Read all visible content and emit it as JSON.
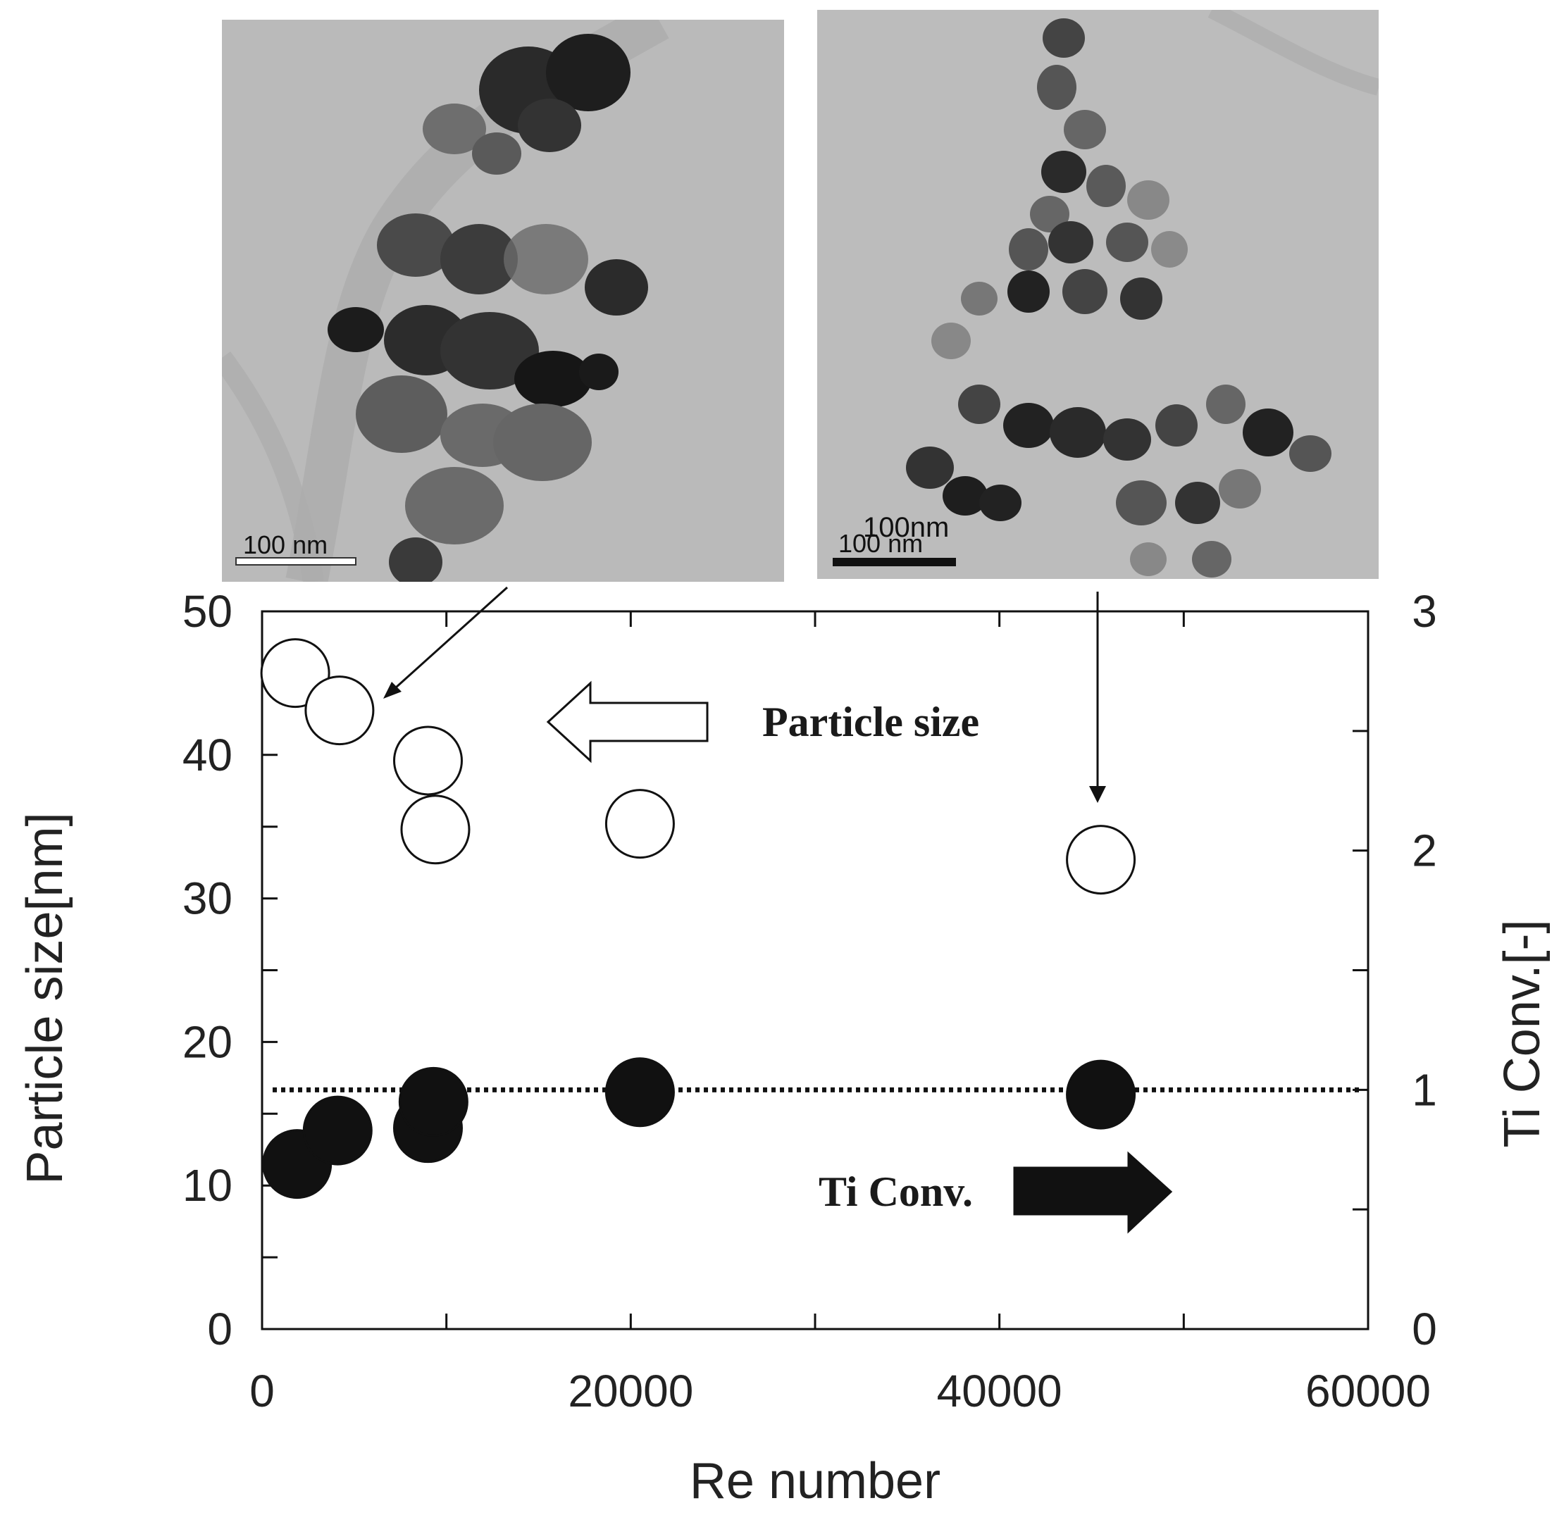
{
  "chart_data": {
    "type": "scatter",
    "xlabel": "Re number",
    "ylabel": "Particle  size[nm]",
    "y2label": "Ti Conv.[-]",
    "xlim": [
      0,
      60000
    ],
    "ylim": [
      0,
      50
    ],
    "y2lim": [
      0,
      3
    ],
    "x_ticks": [
      "0",
      "20000",
      "40000",
      "60000"
    ],
    "y_ticks": [
      "0",
      "10",
      "20",
      "30",
      "40",
      "50"
    ],
    "y2_ticks": [
      "0",
      "1",
      "2",
      "3"
    ],
    "reference_line": {
      "axis": "y2",
      "value": 1,
      "style": "dotted"
    },
    "series": [
      {
        "name": "Particle size",
        "marker": "open-circle",
        "axis": "y",
        "points": [
          {
            "x": 1800,
            "y": 45.7
          },
          {
            "x": 4200,
            "y": 43.1
          },
          {
            "x": 9000,
            "y": 39.6
          },
          {
            "x": 9400,
            "y": 34.8
          },
          {
            "x": 20500,
            "y": 35.2
          },
          {
            "x": 45500,
            "y": 32.7
          }
        ]
      },
      {
        "name": "Ti Conv.",
        "marker": "filled-circle",
        "axis": "y2",
        "points": [
          {
            "x": 1900,
            "y": 0.69
          },
          {
            "x": 4100,
            "y": 0.83
          },
          {
            "x": 9000,
            "y": 0.84
          },
          {
            "x": 9300,
            "y": 0.95
          },
          {
            "x": 20500,
            "y": 0.99
          },
          {
            "x": 45500,
            "y": 0.98
          }
        ]
      }
    ],
    "annotations": {
      "particle_size": "Particle size",
      "ti_conv": "Ti Conv."
    }
  },
  "tem_images": {
    "left_scale_text": "100 nm",
    "right_scale_text": "100 nm",
    "right_scale_label": "100nm"
  },
  "colors": {
    "ink": "#111111",
    "tem_background": "#b9b9b9",
    "particle_dark": "#222222",
    "particle_mid": "#555555",
    "particle_light": "#8a8a8a"
  }
}
